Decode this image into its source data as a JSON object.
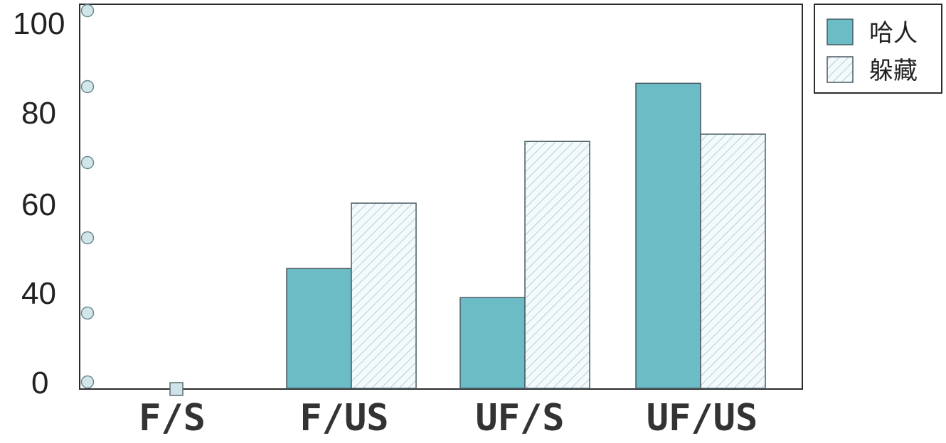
{
  "colors": {
    "series_1": "#6cbcc6",
    "series_2_fill": "#f4fafb",
    "series_2_hatch": "#9fc7cf",
    "bar_outline": "#4a5a63",
    "axis": "#333333",
    "dot": "#d2e6ea",
    "frame": "#2b2b2b"
  },
  "chart_data": {
    "type": "bar",
    "categories": [
      "F/S",
      "F/US",
      "UF/S",
      "UF/US"
    ],
    "series": [
      {
        "name": "哈人",
        "style": "solid",
        "values": [
          0,
          33,
          25,
          84
        ]
      },
      {
        "name": "躲藏",
        "style": "hatched",
        "values": [
          0,
          51,
          68,
          70
        ]
      }
    ],
    "title": "",
    "xlabel": "",
    "ylabel": "",
    "ylim": [
      0,
      100
    ],
    "yticks": [
      "100",
      "80",
      "60",
      "40",
      "0"
    ],
    "legend_position": "top-right, outside plot",
    "grid": false
  }
}
